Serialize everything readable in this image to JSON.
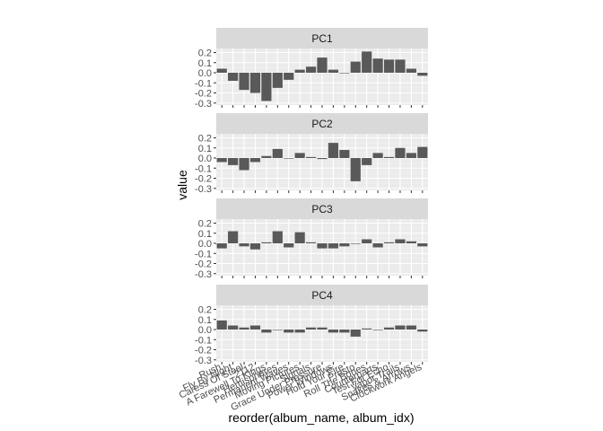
{
  "chart_data": {
    "type": "bar",
    "facet_wrap": "rows",
    "xlabel": "reorder(album_name, album_idx)",
    "ylabel": "value",
    "ylim": [
      -0.32,
      0.24
    ],
    "yticks": [
      0.2,
      0.1,
      0.0,
      -0.1,
      -0.2,
      -0.3
    ],
    "ytick_labels": [
      "0.2",
      "0.1",
      "0.0",
      "-0.1",
      "-0.2",
      "-0.3"
    ],
    "categories": [
      "Rush",
      "Fly By Night",
      "Caress Of Steel",
      "2112",
      "A Farewell To Kings",
      "Hemispheres",
      "Permanent Waves",
      "Moving Pictures",
      "Signals",
      "Grace Under Pressure",
      "Power Windows",
      "Hold Your Fire",
      "Presto",
      "Roll The Bones",
      "Counterparts",
      "Test For Echo",
      "Vapor Trails",
      "Snakes & Arrows",
      "Clockwork Angels"
    ],
    "series": [
      {
        "name": "PC1",
        "values": [
          0.04,
          -0.08,
          -0.17,
          -0.2,
          -0.28,
          -0.15,
          -0.07,
          0.03,
          0.06,
          0.15,
          0.03,
          0.0,
          0.11,
          0.21,
          0.14,
          0.13,
          0.13,
          0.04,
          -0.03
        ]
      },
      {
        "name": "PC2",
        "values": [
          -0.04,
          -0.07,
          -0.12,
          -0.04,
          0.02,
          0.09,
          0.0,
          0.05,
          0.01,
          -0.01,
          0.15,
          0.08,
          -0.23,
          -0.07,
          0.05,
          0.01,
          0.1,
          0.05,
          0.11
        ]
      },
      {
        "name": "PC3",
        "values": [
          -0.05,
          0.12,
          -0.03,
          -0.06,
          0.01,
          0.12,
          -0.04,
          0.11,
          0.01,
          -0.05,
          -0.05,
          -0.03,
          0.0,
          0.04,
          -0.04,
          0.01,
          0.04,
          0.02,
          -0.03
        ]
      },
      {
        "name": "PC4",
        "values": [
          0.09,
          0.04,
          0.02,
          0.04,
          -0.03,
          0.0,
          -0.03,
          -0.03,
          0.02,
          0.02,
          -0.03,
          -0.03,
          -0.07,
          0.01,
          0.0,
          0.02,
          0.04,
          0.04,
          -0.02
        ]
      }
    ],
    "grid": true,
    "legend": "none",
    "colors": {
      "bar": "#595959",
      "panel_bg": "#ebebeb",
      "strip_bg": "#d9d9d9",
      "grid_major": "#ffffff",
      "grid_minor": "#f3f3f3"
    }
  }
}
